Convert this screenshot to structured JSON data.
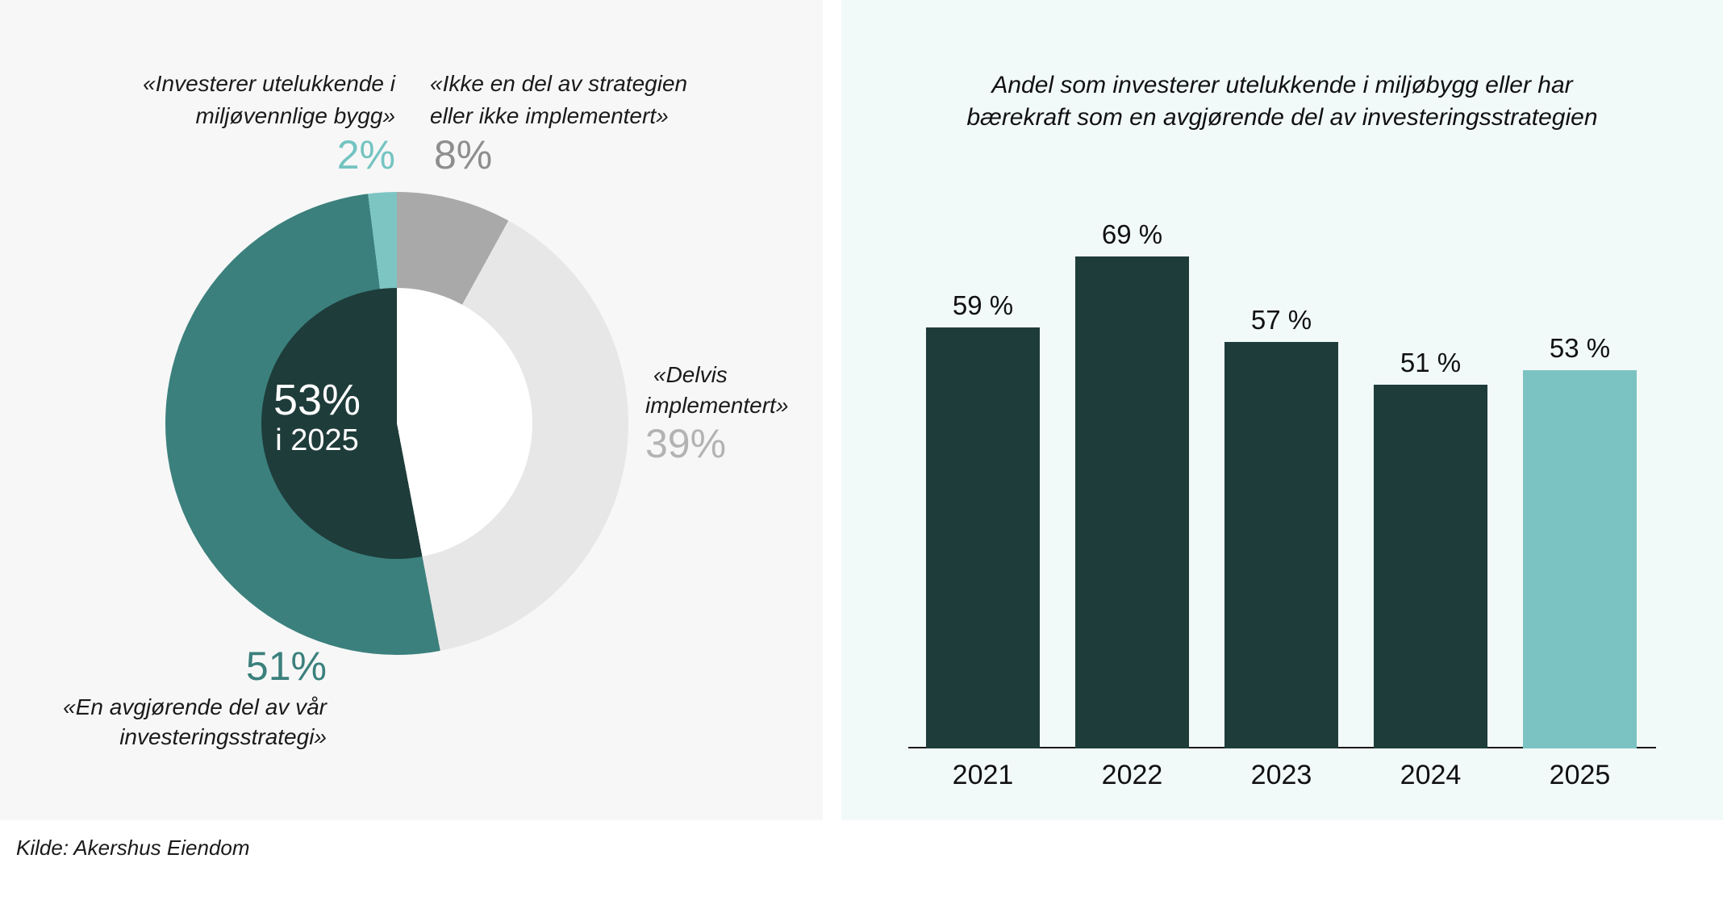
{
  "source_note": "Kilde: Akershus Eiendom",
  "donut_panel": {
    "center_value": "53%",
    "center_caption": "i 2025",
    "callout_exclusive": {
      "line1": "«Investerer utelukkende i",
      "line2": "miljøvennlige bygg»",
      "pct": "2%"
    },
    "callout_not_implemented": {
      "line1": "«Ikke en del av strategien",
      "line2": "eller ikke implementert»",
      "pct": "8%"
    },
    "callout_partial": {
      "line1": "«Delvis",
      "line2": "implementert»",
      "pct": "39%"
    },
    "callout_decisive": {
      "pct": "51%",
      "line1": "«En avgjørende del av vår",
      "line2": "investeringsstrategi»"
    }
  },
  "bar_panel": {
    "title_line1": "Andel som investerer utelukkende i miljøbygg eller har",
    "title_line2": "bærekraft som en avgjørende del av investeringsstrategien"
  },
  "colors": {
    "teal": "#3b807d",
    "light_teal": "#7cc5c2",
    "gray": "#a9a9a9",
    "light_gray": "#e7e7e7",
    "dark_teal": "#1e3c3a",
    "pct_2_color": "#74c4c1",
    "pct_8_color": "#8e8e8e",
    "pct_39_color": "#b3b3b3",
    "pct_51_color": "#3b807d",
    "left_panel_bg": "#f7f7f7",
    "right_panel_bg": "#f2f9f9",
    "donut_hole": "#ffffff",
    "center_text": "#ffffff"
  },
  "chart_data": [
    {
      "type": "pie",
      "subtype": "donut",
      "title": "",
      "start_angle_deg": 0,
      "direction": "clockwise",
      "segments": [
        {
          "label": "«Ikke en del av strategien eller ikke implementert»",
          "value": 8,
          "color": "#a9a9a9"
        },
        {
          "label": "«Delvis implementert»",
          "value": 39,
          "color": "#e7e7e7"
        },
        {
          "label": "«En avgjørende del av vår investeringsstrategi»",
          "value": 51,
          "color": "#3b807d"
        },
        {
          "label": "«Investerer utelukkende i miljøvennlige bygg»",
          "value": 2,
          "color": "#7cc5c2"
        }
      ],
      "center_label": "53%",
      "center_sublabel": "i 2025",
      "center_highlight": {
        "value": 53,
        "color": "#1e3c3a"
      }
    },
    {
      "type": "bar",
      "title": "Andel som investerer utelukkende i miljøbygg eller har bærekraft som en avgjørende del av investeringsstrategien",
      "categories": [
        "2021",
        "2022",
        "2023",
        "2024",
        "2025"
      ],
      "values": [
        59,
        69,
        57,
        51,
        53
      ],
      "value_labels": [
        "59 %",
        "69 %",
        "57 %",
        "51 %",
        "53 %"
      ],
      "bar_colors": [
        "#1e3c3a",
        "#1e3c3a",
        "#1e3c3a",
        "#1e3c3a",
        "#7bc3c2"
      ],
      "xlabel": "",
      "ylabel": "",
      "ylim": [
        0,
        73
      ],
      "grid": false,
      "legend_position": "none"
    }
  ]
}
